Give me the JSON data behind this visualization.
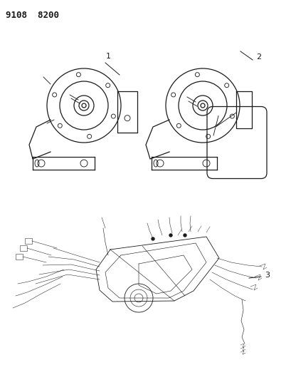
{
  "title": "9108 8200",
  "background_color": "#ffffff",
  "line_color": "#1a1a1a",
  "fig_width": 4.1,
  "fig_height": 5.33,
  "dpi": 100
}
